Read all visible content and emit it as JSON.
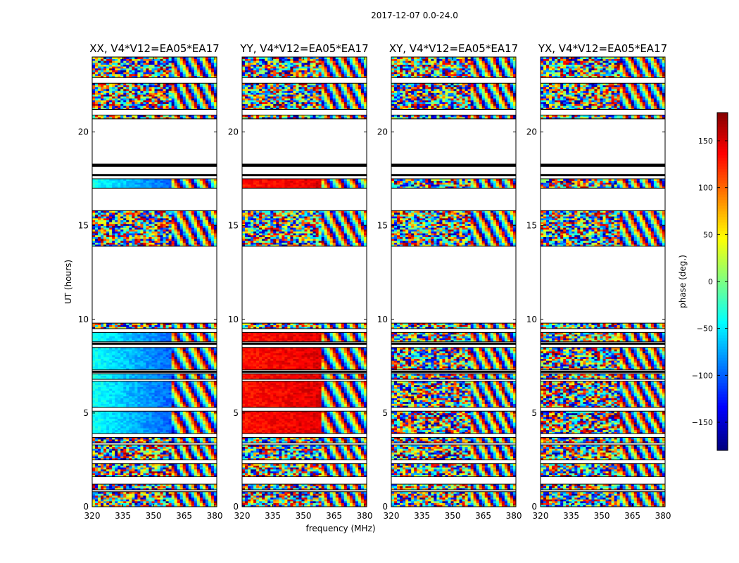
{
  "figure_title": "2017-12-07 0.0-24.0",
  "chart_data": [
    {
      "type": "heatmap",
      "title": "XX, V4*V12=EA05*EA17",
      "xlabel": "",
      "ylabel": "UT (hours)",
      "xlim": [
        320,
        381
      ],
      "ylim": [
        0,
        24
      ],
      "xticks": [
        320,
        335,
        350,
        365,
        380
      ],
      "yticks": [
        0,
        5,
        10,
        15,
        20
      ],
      "value": "phase (deg.)",
      "base_phase": -40,
      "base_phase_high_freq": -120
    },
    {
      "type": "heatmap",
      "title": "YY, V4*V12=EA05*EA17",
      "xlabel": "frequency (MHz)",
      "ylabel": "",
      "xlim": [
        320,
        381
      ],
      "ylim": [
        0,
        24
      ],
      "xticks": [
        320,
        335,
        350,
        365,
        380
      ],
      "yticks": [
        0,
        5,
        10,
        15,
        20
      ],
      "value": "phase (deg.)",
      "base_phase": 130,
      "base_phase_high_freq": 150
    },
    {
      "type": "heatmap",
      "title": "XY, V4*V12=EA05*EA17",
      "xlabel": "",
      "ylabel": "",
      "xlim": [
        320,
        381
      ],
      "ylim": [
        0,
        24
      ],
      "xticks": [
        320,
        335,
        350,
        365,
        380
      ],
      "yticks": [
        0,
        5,
        10,
        15,
        20
      ],
      "value": "phase (deg.)",
      "base_phase": null,
      "base_phase_high_freq": null
    },
    {
      "type": "heatmap",
      "title": "YX, V4*V12=EA05*EA17",
      "xlabel": "",
      "ylabel": "",
      "xlim": [
        320,
        381
      ],
      "ylim": [
        0,
        24
      ],
      "xticks": [
        320,
        335,
        350,
        365,
        380
      ],
      "yticks": [
        0,
        5,
        10,
        15,
        20
      ],
      "value": "phase (deg.)",
      "base_phase": null,
      "base_phase_high_freq": null
    }
  ],
  "data_segments_ut_hours": [
    [
      0.0,
      0.8
    ],
    [
      0.9,
      1.2
    ],
    [
      1.6,
      2.3
    ],
    [
      2.5,
      3.3
    ],
    [
      3.4,
      3.7
    ],
    [
      3.9,
      5.1
    ],
    [
      5.3,
      6.7
    ],
    [
      6.8,
      7.1
    ],
    [
      7.3,
      8.5
    ],
    [
      8.8,
      9.3
    ],
    [
      9.5,
      9.8
    ],
    [
      13.9,
      15.8
    ],
    [
      17.0,
      17.5
    ],
    [
      20.7,
      20.9
    ],
    [
      21.2,
      22.6
    ],
    [
      22.9,
      24.0
    ]
  ],
  "flagged_lines_ut_hours": [
    7.2,
    8.7,
    17.7,
    18.2,
    18.25
  ],
  "colorbar": {
    "label": "phase (deg.)",
    "range": [
      -180,
      180
    ],
    "ticks": [
      -150,
      -100,
      -50,
      0,
      50,
      100,
      150
    ],
    "tick_labels": [
      "−150",
      "−100",
      "−50",
      "0",
      "50",
      "100",
      "150"
    ],
    "colormap": "jet"
  },
  "axis_color": "#000000",
  "background_color": "#ffffff"
}
